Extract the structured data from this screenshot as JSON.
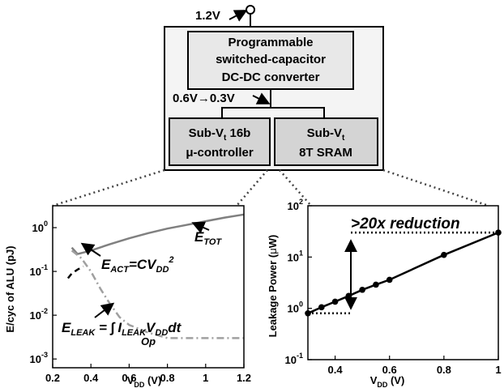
{
  "block_diagram": {
    "input_voltage": "1.2V",
    "converter_lines": [
      "Programmable",
      "switched-capacitor",
      "DC-DC converter"
    ],
    "output_voltage": "0.6V→0.3V",
    "controller": {
      "line1_pre": "Sub-V",
      "line1_sub": "t",
      "line1_post": " 16b",
      "line2": "μ-controller"
    },
    "sram": {
      "line1_pre": "Sub-V",
      "line1_sub": "t",
      "line2": "8T SRAM"
    },
    "colors": {
      "box_fill": "#e8e8e8",
      "sub_box_fill": "#d4d4d4",
      "outline": "#000000"
    }
  },
  "chart_data": [
    {
      "type": "line",
      "ylabel": "E/cyc of ALU (pJ)",
      "xlabel": {
        "main": "V",
        "sub": "DD",
        "unit": " (V)"
      },
      "xlim": [
        0.2,
        1.2
      ],
      "ylim_log": [
        -3.2,
        0.5
      ],
      "x_ticks": [
        "0.2",
        "0.4",
        "0.6",
        "0.8",
        "1",
        "1.2"
      ],
      "y_ticks": [
        {
          "base": "10",
          "exp": "0",
          "value_exp": 0
        },
        {
          "base": "10",
          "exp": "-1",
          "value_exp": -1
        },
        {
          "base": "10",
          "exp": "-2",
          "value_exp": -2
        },
        {
          "base": "10",
          "exp": "-3",
          "value_exp": -3
        }
      ],
      "series": [
        {
          "label": "E_TOT",
          "style": "solid",
          "color": "#808080",
          "x": [
            0.3,
            0.33,
            0.36,
            0.4,
            0.5,
            0.6,
            0.7,
            0.8,
            0.9,
            1.0,
            1.1,
            1.2
          ],
          "y": [
            0.35,
            0.25,
            0.27,
            0.3,
            0.42,
            0.57,
            0.75,
            0.95,
            1.15,
            1.4,
            1.7,
            2.0
          ]
        },
        {
          "label": "E_ACT",
          "style": "dashed",
          "color": "#000000",
          "x": [
            0.28,
            0.3,
            0.33,
            0.36
          ],
          "y": [
            0.07,
            0.09,
            0.11,
            0.13
          ]
        },
        {
          "label": "E_LEAK",
          "style": "dashdot",
          "color": "#a0a0a0",
          "x": [
            0.3,
            0.35,
            0.4,
            0.45,
            0.5,
            0.55,
            0.6,
            0.7,
            0.8,
            0.9,
            1.0,
            1.1,
            1.2
          ],
          "y": [
            0.3,
            0.2,
            0.1,
            0.04,
            0.018,
            0.009,
            0.006,
            0.004,
            0.003,
            0.003,
            0.003,
            0.003,
            0.003
          ]
        }
      ],
      "annotations": {
        "etot": {
          "main": "E",
          "sub": "TOT"
        },
        "eact": {
          "main": "E",
          "sub": "ACT",
          "eq": "=CV",
          "sub2": "DD",
          "sup": "2"
        },
        "eleak": {
          "main": "E",
          "sub": "LEAK",
          "eq": " = ",
          "integral": "∫",
          "op": "Op",
          "i": "I",
          "isub": "LEAK",
          "v": "V",
          "vsub": "DD",
          "dt": "dt"
        }
      }
    },
    {
      "type": "line",
      "ylabel": {
        "main": "Leakage Power (",
        "mu": "μ",
        "unit": "W)"
      },
      "xlabel": {
        "main": "V",
        "sub": "DD",
        "unit": " (V)"
      },
      "xlim": [
        0.3,
        1.0
      ],
      "ylim_log": [
        -1,
        2
      ],
      "x_ticks": [
        "0.4",
        "0.6",
        "0.8",
        "1"
      ],
      "y_ticks": [
        {
          "base": "10",
          "exp": "2",
          "value_exp": 2
        },
        {
          "base": "10",
          "exp": "1",
          "value_exp": 1
        },
        {
          "base": "10",
          "exp": "0",
          "value_exp": 0
        },
        {
          "base": "10",
          "exp": "-1",
          "value_exp": -1
        }
      ],
      "series": [
        {
          "style": "solid-markers",
          "color": "#000000",
          "x": [
            0.3,
            0.35,
            0.4,
            0.45,
            0.5,
            0.55,
            0.6,
            0.8,
            1.0
          ],
          "y": [
            0.8,
            1.05,
            1.35,
            1.75,
            2.3,
            2.9,
            3.6,
            11,
            30
          ]
        }
      ],
      "annotation": ">20x reduction",
      "reference_levels": [
        30,
        0.8
      ]
    }
  ]
}
